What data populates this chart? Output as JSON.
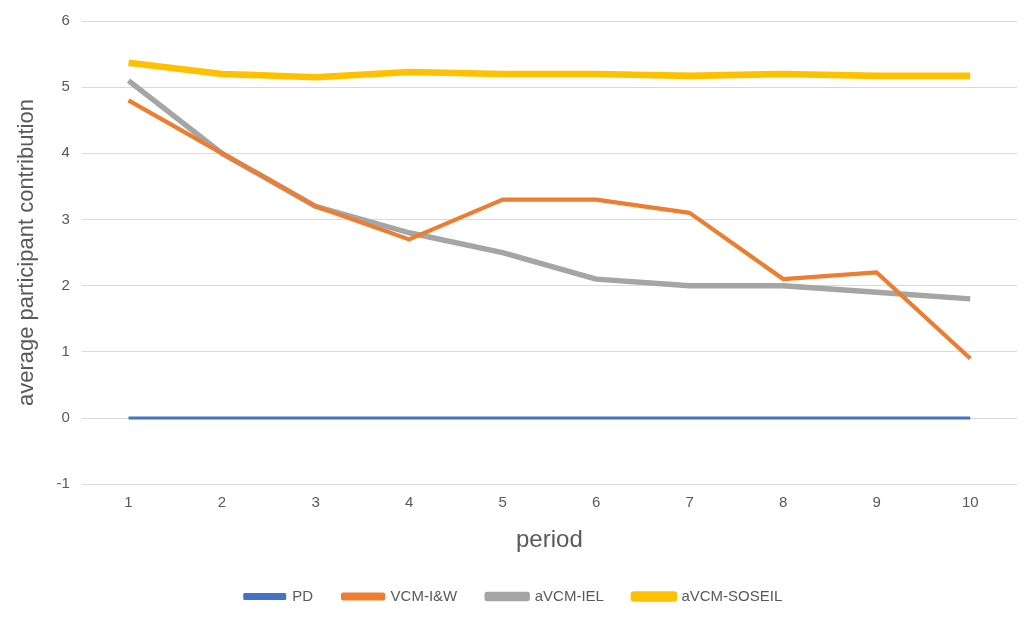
{
  "chart_data": {
    "type": "line",
    "xlabel": "period",
    "ylabel": "average participant contribution",
    "categories": [
      "1",
      "2",
      "3",
      "4",
      "5",
      "6",
      "7",
      "8",
      "9",
      "10"
    ],
    "series": [
      {
        "name": "PD",
        "color": "#4472c4",
        "values": [
          0,
          0,
          0,
          0,
          0,
          0,
          0,
          0,
          0,
          0
        ]
      },
      {
        "name": "VCM-I&W",
        "color": "#ed7d31",
        "values": [
          4.8,
          4.0,
          3.2,
          2.7,
          3.3,
          3.3,
          3.1,
          2.1,
          2.2,
          0.9
        ]
      },
      {
        "name": "aVCM-IEL",
        "color": "#a5a5a5",
        "values": [
          5.1,
          4.0,
          3.2,
          2.8,
          2.5,
          2.1,
          2.0,
          2.0,
          1.9,
          1.8
        ]
      },
      {
        "name": "aVCM-SOSEIL",
        "color": "#ffc000",
        "values": [
          5.37,
          5.2,
          5.15,
          5.23,
          5.2,
          5.2,
          5.17,
          5.2,
          5.17,
          5.17
        ]
      }
    ],
    "ylim": [
      -1,
      6
    ],
    "yticks": [
      -1,
      0,
      1,
      2,
      3,
      4,
      5,
      6
    ],
    "grid": "y",
    "legend": "bottom",
    "marker": "none",
    "line_style": "solid"
  }
}
